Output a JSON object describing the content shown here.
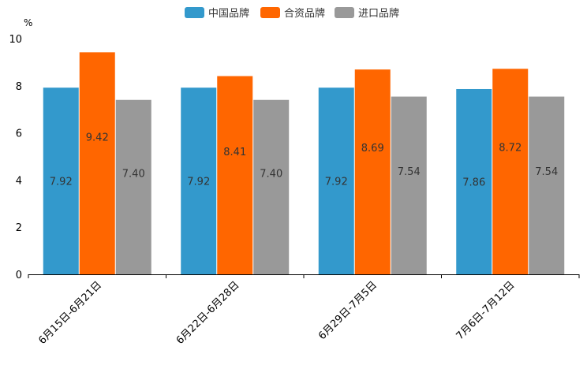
{
  "chart_data": {
    "type": "bar",
    "title": "",
    "xlabel": "",
    "ylabel": "%",
    "ylim": [
      0,
      10
    ],
    "yticks": [
      0,
      2,
      4,
      6,
      8,
      10
    ],
    "ytick_labels": [
      "0",
      "2",
      "4",
      "6",
      "8",
      "10"
    ],
    "categories": [
      "6月15日-6月21日",
      "6月22日-6月28日",
      "6月29日-7月5日",
      "7月6日-7月12日"
    ],
    "series": [
      {
        "name": "中国品牌",
        "color": "#3399cc",
        "values": [
          7.92,
          7.92,
          7.92,
          7.86
        ],
        "labels": [
          "7.92",
          "7.92",
          "7.92",
          "7.86"
        ]
      },
      {
        "name": "合资品牌",
        "color": "#ff6600",
        "values": [
          9.42,
          8.41,
          8.69,
          8.72
        ],
        "labels": [
          "9.42",
          "8.41",
          "8.69",
          "8.72"
        ]
      },
      {
        "name": "进口品牌",
        "color": "#999999",
        "values": [
          7.4,
          7.4,
          7.54,
          7.54
        ],
        "labels": [
          "7.40",
          "7.40",
          "7.54",
          "7.54"
        ]
      }
    ],
    "legend_position": "top-center",
    "grid": false
  }
}
